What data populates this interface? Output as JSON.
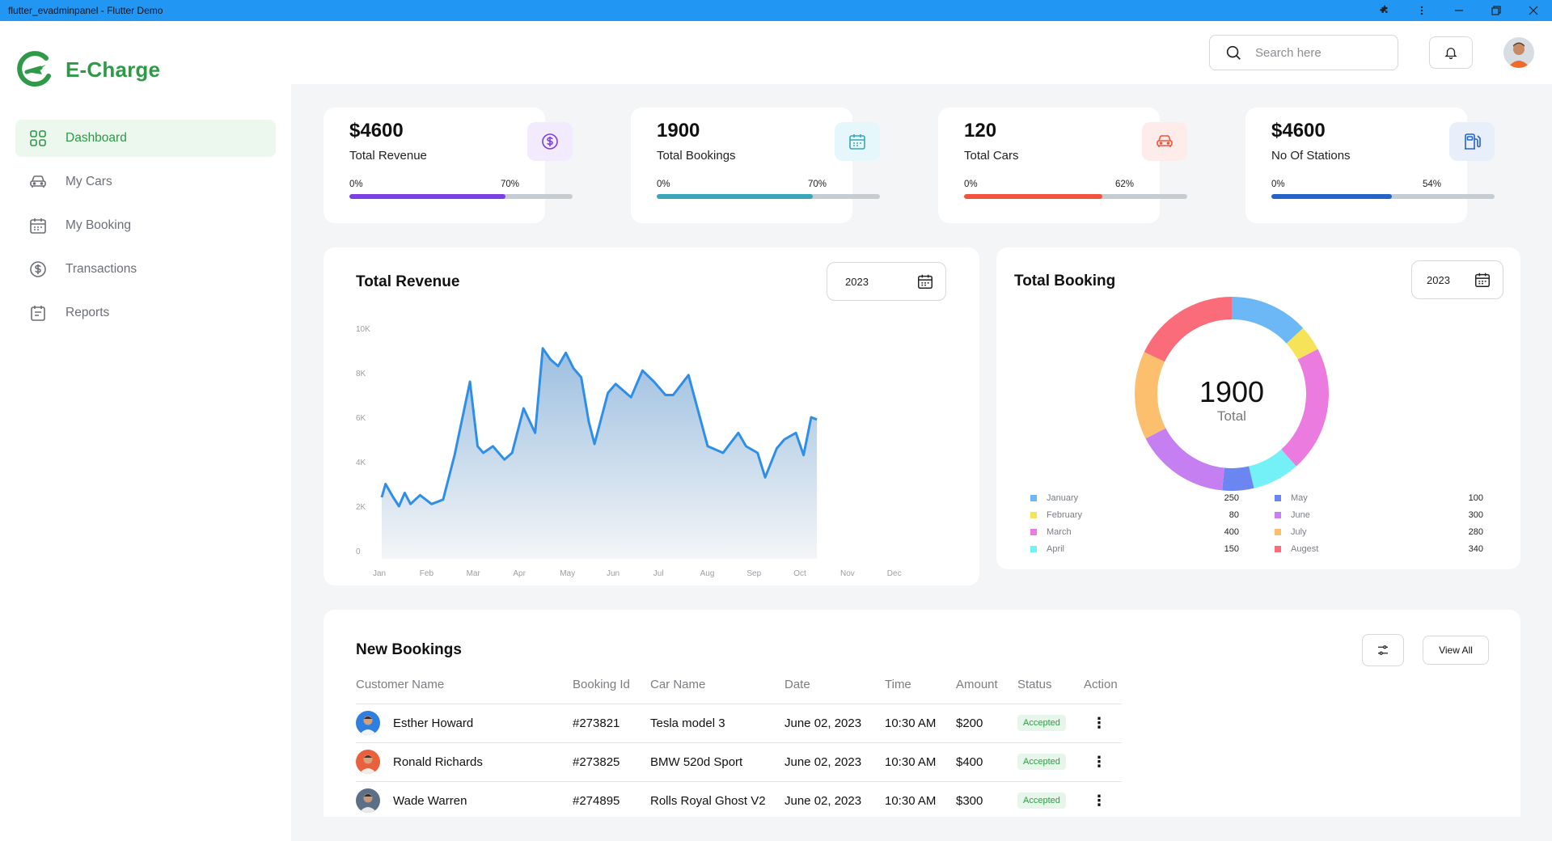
{
  "window": {
    "title": "flutter_evadminpanel - Flutter Demo"
  },
  "brand": {
    "name": "E-Charge",
    "color": "#2e9a47"
  },
  "sidebar": {
    "items": [
      {
        "label": "Dashboard",
        "icon": "grid-icon",
        "active": true
      },
      {
        "label": "My Cars",
        "icon": "car-icon"
      },
      {
        "label": "My Booking",
        "icon": "calendar-icon"
      },
      {
        "label": "Transactions",
        "icon": "dollar-circle-icon"
      },
      {
        "label": "Reports",
        "icon": "report-icon"
      }
    ]
  },
  "header": {
    "search_placeholder": "Search here"
  },
  "stats": [
    {
      "value": "$4600",
      "label": "Total Revenue",
      "start": "0%",
      "percent_label": "70%",
      "percent": 70,
      "color": "#7b3fe4",
      "icon": "dollar-circle-icon",
      "icon_bg": "#f1ebfd"
    },
    {
      "value": "1900",
      "label": "Total Bookings",
      "start": "0%",
      "percent_label": "70%",
      "percent": 70,
      "color": "#3aa6b9",
      "icon": "calendar-icon",
      "icon_bg": "#e6f7fb"
    },
    {
      "value": "120",
      "label": "Total Cars",
      "start": "0%",
      "percent_label": "62%",
      "percent": 62,
      "color": "#f2543d",
      "icon": "car-icon",
      "icon_bg": "#fdecea"
    },
    {
      "value": "$4600",
      "label": "No Of Stations",
      "start": "0%",
      "percent_label": "54%",
      "percent": 54,
      "color": "#2563c9",
      "icon": "fuel-station-icon",
      "icon_bg": "#e8effb"
    }
  ],
  "revenue": {
    "title": "Total Revenue",
    "year": "2023"
  },
  "booking": {
    "title": "Total Booking",
    "year": "2023",
    "total": "1900",
    "total_label": "Total"
  },
  "chart_data": [
    {
      "type": "area",
      "title": "Total Revenue",
      "color": "#2f8fe6",
      "ylim": [
        0,
        10000
      ],
      "yticks": [
        "0",
        "2K",
        "4K",
        "6K",
        "8K",
        "10K"
      ],
      "xticks": [
        "Jan",
        "Feb",
        "Mar",
        "Apr",
        "May",
        "Jun",
        "Jul",
        "Aug",
        "Sep",
        "Oct",
        "Nov",
        "Dec"
      ],
      "x": [
        0,
        0.1,
        0.3,
        0.45,
        0.6,
        0.75,
        1,
        1.3,
        1.6,
        1.9,
        2.3,
        2.5,
        2.65,
        2.9,
        3.2,
        3.4,
        3.7,
        4.0,
        4.2,
        4.4,
        4.6,
        4.8,
        5.0,
        5.2,
        5.4,
        5.55,
        5.9,
        6.1,
        6.5,
        6.8,
        7.1,
        7.4,
        7.6,
        8.0,
        8.5,
        8.9,
        9.3,
        9.5,
        9.8,
        10.0,
        10.3,
        10.5,
        10.8,
        11.0,
        11.2,
        11.35
      ],
      "y": [
        2400,
        3000,
        2400,
        2000,
        2600,
        2100,
        2500,
        2100,
        2300,
        4300,
        7600,
        4700,
        4400,
        4700,
        4100,
        4400,
        6400,
        5300,
        9100,
        8600,
        8300,
        8900,
        8200,
        7800,
        5800,
        4800,
        7100,
        7500,
        6900,
        8100,
        7600,
        7000,
        7000,
        7900,
        4700,
        4400,
        5300,
        4700,
        4400,
        3300,
        4600,
        5000,
        5300,
        4300,
        6000,
        5900
      ]
    },
    {
      "type": "pie",
      "title": "Total Booking",
      "categories": [
        "January",
        "February",
        "March",
        "April",
        "May",
        "June",
        "July",
        "Augest"
      ],
      "values": [
        250,
        80,
        400,
        150,
        100,
        300,
        280,
        340
      ],
      "colors": [
        "#6cb8f7",
        "#f7e35a",
        "#ec7be0",
        "#74f0f7",
        "#6b86f0",
        "#c67ff0",
        "#fbbf6e",
        "#fb6c7a"
      ]
    }
  ],
  "bookings": {
    "title": "New Bookings",
    "view_all": "View All",
    "columns": [
      "Customer Name",
      "Booking Id",
      "Car Name",
      "Date",
      "Time",
      "Amount",
      "Status",
      "Action"
    ],
    "rows": [
      {
        "name": "Esther Howard",
        "id": "#273821",
        "car": "Tesla model 3",
        "date": "June 02, 2023",
        "time": "10:30 AM",
        "amount": "$200",
        "status": "Accepted"
      },
      {
        "name": "Ronald Richards",
        "id": "#273825",
        "car": "BMW 520d Sport",
        "date": "June 02, 2023",
        "time": "10:30 AM",
        "amount": "$400",
        "status": "Accepted"
      },
      {
        "name": "Wade Warren",
        "id": "#274895",
        "car": "Rolls Royal Ghost V2",
        "date": "June 02, 2023",
        "time": "10:30 AM",
        "amount": "$300",
        "status": "Accepted"
      }
    ]
  }
}
